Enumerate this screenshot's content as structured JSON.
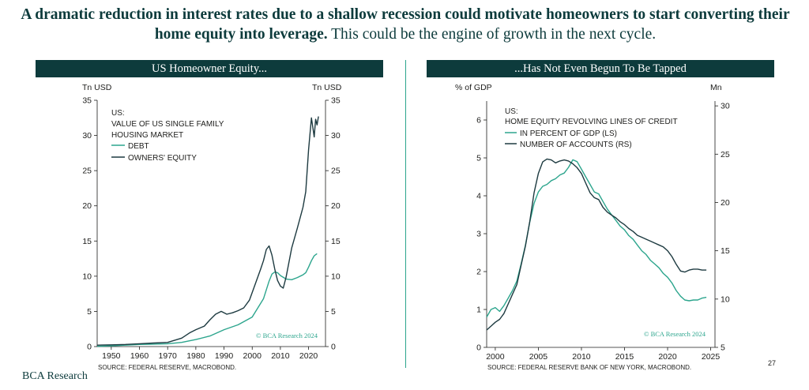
{
  "headline": {
    "bold": "A dramatic reduction in interest rates due to a shallow recession could motivate homeowners to start converting their home equity into leverage.",
    "regular": " This could be the engine of growth in the next cycle."
  },
  "footer": {
    "brand": "BCA Research",
    "page_number": "27"
  },
  "colors": {
    "teal": "#2ca58d",
    "dark": "#1d3a40",
    "title_bg": "#0d3b3c"
  },
  "chart_data": [
    {
      "type": "line",
      "title": "US Homeowner Equity...",
      "left_unit": "Tn USD",
      "right_unit": "Tn USD",
      "ylim": [
        0,
        35
      ],
      "xlim": [
        1945,
        2026
      ],
      "y_ticks": [
        "0",
        "5",
        "10",
        "15",
        "20",
        "25",
        "30",
        "35"
      ],
      "x_ticks": [
        "1950",
        "1960",
        "1970",
        "1980",
        "1990",
        "2000",
        "2010",
        "2020"
      ],
      "legend": {
        "heading": "US:",
        "subheading_1": "VALUE OF US SINGLE FAMILY",
        "subheading_2": "HOUSING MARKET",
        "placement": "top-left"
      },
      "credit": "© BCA Research 2024",
      "source": "SOURCE: FEDERAL RESERVE, MACROBOND.",
      "series": [
        {
          "name": "DEBT",
          "color": "#2ca58d",
          "points": [
            [
              1945,
              0.05
            ],
            [
              1950,
              0.1
            ],
            [
              1955,
              0.2
            ],
            [
              1960,
              0.3
            ],
            [
              1965,
              0.35
            ],
            [
              1970,
              0.4
            ],
            [
              1975,
              0.6
            ],
            [
              1980,
              1.0
            ],
            [
              1985,
              1.5
            ],
            [
              1990,
              2.4
            ],
            [
              1995,
              3.1
            ],
            [
              2000,
              4.2
            ],
            [
              2004,
              6.8
            ],
            [
              2006,
              9.3
            ],
            [
              2007,
              10.3
            ],
            [
              2008,
              10.6
            ],
            [
              2009,
              10.5
            ],
            [
              2010,
              10.1
            ],
            [
              2012,
              9.6
            ],
            [
              2014,
              9.5
            ],
            [
              2016,
              9.8
            ],
            [
              2018,
              10.2
            ],
            [
              2019,
              10.5
            ],
            [
              2020,
              11.3
            ],
            [
              2021,
              12.2
            ],
            [
              2022,
              12.9
            ],
            [
              2023,
              13.2
            ]
          ]
        },
        {
          "name": "OWNERS' EQUITY",
          "color": "#1d3a40",
          "points": [
            [
              1945,
              0.2
            ],
            [
              1950,
              0.25
            ],
            [
              1955,
              0.3
            ],
            [
              1960,
              0.4
            ],
            [
              1965,
              0.5
            ],
            [
              1970,
              0.6
            ],
            [
              1975,
              1.2
            ],
            [
              1978,
              2.0
            ],
            [
              1980,
              2.4
            ],
            [
              1983,
              2.9
            ],
            [
              1985,
              3.8
            ],
            [
              1987,
              4.6
            ],
            [
              1989,
              5.0
            ],
            [
              1991,
              4.6
            ],
            [
              1993,
              4.8
            ],
            [
              1995,
              5.1
            ],
            [
              1997,
              5.5
            ],
            [
              1999,
              6.6
            ],
            [
              2001,
              8.8
            ],
            [
              2003,
              11.0
            ],
            [
              2004,
              12.2
            ],
            [
              2005,
              13.8
            ],
            [
              2006,
              14.3
            ],
            [
              2007,
              13.0
            ],
            [
              2008,
              11.0
            ],
            [
              2009,
              9.4
            ],
            [
              2010,
              8.6
            ],
            [
              2011,
              8.3
            ],
            [
              2012,
              9.8
            ],
            [
              2014,
              14.0
            ],
            [
              2016,
              16.8
            ],
            [
              2018,
              19.8
            ],
            [
              2019,
              22.0
            ],
            [
              2020,
              28.0
            ],
            [
              2021,
              32.5
            ],
            [
              2022,
              29.8
            ],
            [
              2022.5,
              32.3
            ],
            [
              2023,
              31.5
            ],
            [
              2023.5,
              32.7
            ]
          ]
        }
      ]
    },
    {
      "type": "line",
      "title": "...Has Not Even Begun To Be Tapped",
      "left_unit": "% of GDP",
      "right_unit": "Mn",
      "ylim_left": [
        0,
        6.5
      ],
      "ylim_right": [
        5,
        30.5
      ],
      "xlim": [
        1999,
        2025.5
      ],
      "y_ticks_left": [
        "0",
        "1",
        "2",
        "3",
        "4",
        "5",
        "6"
      ],
      "y_ticks_right": [
        "5",
        "10",
        "15",
        "20",
        "25",
        "30"
      ],
      "x_ticks": [
        "2000",
        "2005",
        "2010",
        "2015",
        "2020",
        "2025"
      ],
      "legend": {
        "heading": "US:",
        "subheading": "HOME EQUITY REVOLVING LINES OF CREDIT",
        "placement": "top-left"
      },
      "credit": "© BCA Research 2024",
      "source": "SOURCE: FEDERAL RESERVE BANK OF NEW YORK, MACROBOND.",
      "series": [
        {
          "name": "IN PERCENT OF GDP (LS)",
          "color": "#2ca58d",
          "axis": "left",
          "points": [
            [
              1999,
              0.8
            ],
            [
              1999.5,
              1.0
            ],
            [
              2000,
              1.05
            ],
            [
              2000.5,
              0.95
            ],
            [
              2001,
              1.1
            ],
            [
              2001.5,
              1.3
            ],
            [
              2002,
              1.5
            ],
            [
              2002.5,
              1.75
            ],
            [
              2003,
              2.2
            ],
            [
              2003.5,
              2.7
            ],
            [
              2004,
              3.3
            ],
            [
              2004.5,
              3.8
            ],
            [
              2005,
              4.1
            ],
            [
              2005.5,
              4.25
            ],
            [
              2006,
              4.3
            ],
            [
              2006.5,
              4.4
            ],
            [
              2007,
              4.45
            ],
            [
              2007.5,
              4.55
            ],
            [
              2008,
              4.6
            ],
            [
              2008.5,
              4.75
            ],
            [
              2009,
              4.95
            ],
            [
              2009.5,
              4.9
            ],
            [
              2010,
              4.7
            ],
            [
              2010.5,
              4.5
            ],
            [
              2011,
              4.3
            ],
            [
              2011.5,
              4.1
            ],
            [
              2012,
              4.05
            ],
            [
              2012.5,
              3.85
            ],
            [
              2013,
              3.65
            ],
            [
              2013.5,
              3.5
            ],
            [
              2014,
              3.35
            ],
            [
              2014.5,
              3.2
            ],
            [
              2015,
              3.1
            ],
            [
              2015.5,
              2.95
            ],
            [
              2016,
              2.85
            ],
            [
              2016.5,
              2.7
            ],
            [
              2017,
              2.55
            ],
            [
              2017.5,
              2.45
            ],
            [
              2018,
              2.3
            ],
            [
              2018.5,
              2.2
            ],
            [
              2019,
              2.1
            ],
            [
              2019.5,
              1.95
            ],
            [
              2020,
              1.85
            ],
            [
              2020.5,
              1.7
            ],
            [
              2021,
              1.5
            ],
            [
              2021.5,
              1.35
            ],
            [
              2022,
              1.25
            ],
            [
              2022.5,
              1.23
            ],
            [
              2023,
              1.25
            ],
            [
              2023.5,
              1.25
            ],
            [
              2024,
              1.3
            ],
            [
              2024.5,
              1.32
            ]
          ]
        },
        {
          "name": "NUMBER OF ACCOUNTS (RS)",
          "color": "#1d3a40",
          "axis": "right",
          "points": [
            [
              1999,
              6.8
            ],
            [
              1999.5,
              7.2
            ],
            [
              2000,
              7.6
            ],
            [
              2000.5,
              7.9
            ],
            [
              2001,
              8.5
            ],
            [
              2001.5,
              9.5
            ],
            [
              2002,
              10.5
            ],
            [
              2002.5,
              11.5
            ],
            [
              2003,
              13.5
            ],
            [
              2003.5,
              15.5
            ],
            [
              2004,
              18.0
            ],
            [
              2004.5,
              21.0
            ],
            [
              2005,
              23.0
            ],
            [
              2005.5,
              24.2
            ],
            [
              2006,
              24.5
            ],
            [
              2006.5,
              24.4
            ],
            [
              2007,
              24.1
            ],
            [
              2007.5,
              24.3
            ],
            [
              2008,
              24.4
            ],
            [
              2008.5,
              24.3
            ],
            [
              2009,
              24.0
            ],
            [
              2009.5,
              23.6
            ],
            [
              2010,
              23.0
            ],
            [
              2010.5,
              22.0
            ],
            [
              2011,
              21.0
            ],
            [
              2011.5,
              20.5
            ],
            [
              2012,
              20.3
            ],
            [
              2012.5,
              19.5
            ],
            [
              2013,
              19.0
            ],
            [
              2013.5,
              18.7
            ],
            [
              2014,
              18.4
            ],
            [
              2014.5,
              18.0
            ],
            [
              2015,
              17.7
            ],
            [
              2015.5,
              17.3
            ],
            [
              2016,
              17.0
            ],
            [
              2016.5,
              16.6
            ],
            [
              2017,
              16.4
            ],
            [
              2017.5,
              16.2
            ],
            [
              2018,
              16.0
            ],
            [
              2018.5,
              15.8
            ],
            [
              2019,
              15.6
            ],
            [
              2019.5,
              15.4
            ],
            [
              2020,
              15.0
            ],
            [
              2020.5,
              14.4
            ],
            [
              2021,
              13.6
            ],
            [
              2021.5,
              12.9
            ],
            [
              2022,
              12.8
            ],
            [
              2022.5,
              13.0
            ],
            [
              2023,
              13.1
            ],
            [
              2023.5,
              13.1
            ],
            [
              2024,
              13.0
            ],
            [
              2024.5,
              13.0
            ]
          ]
        }
      ]
    }
  ]
}
